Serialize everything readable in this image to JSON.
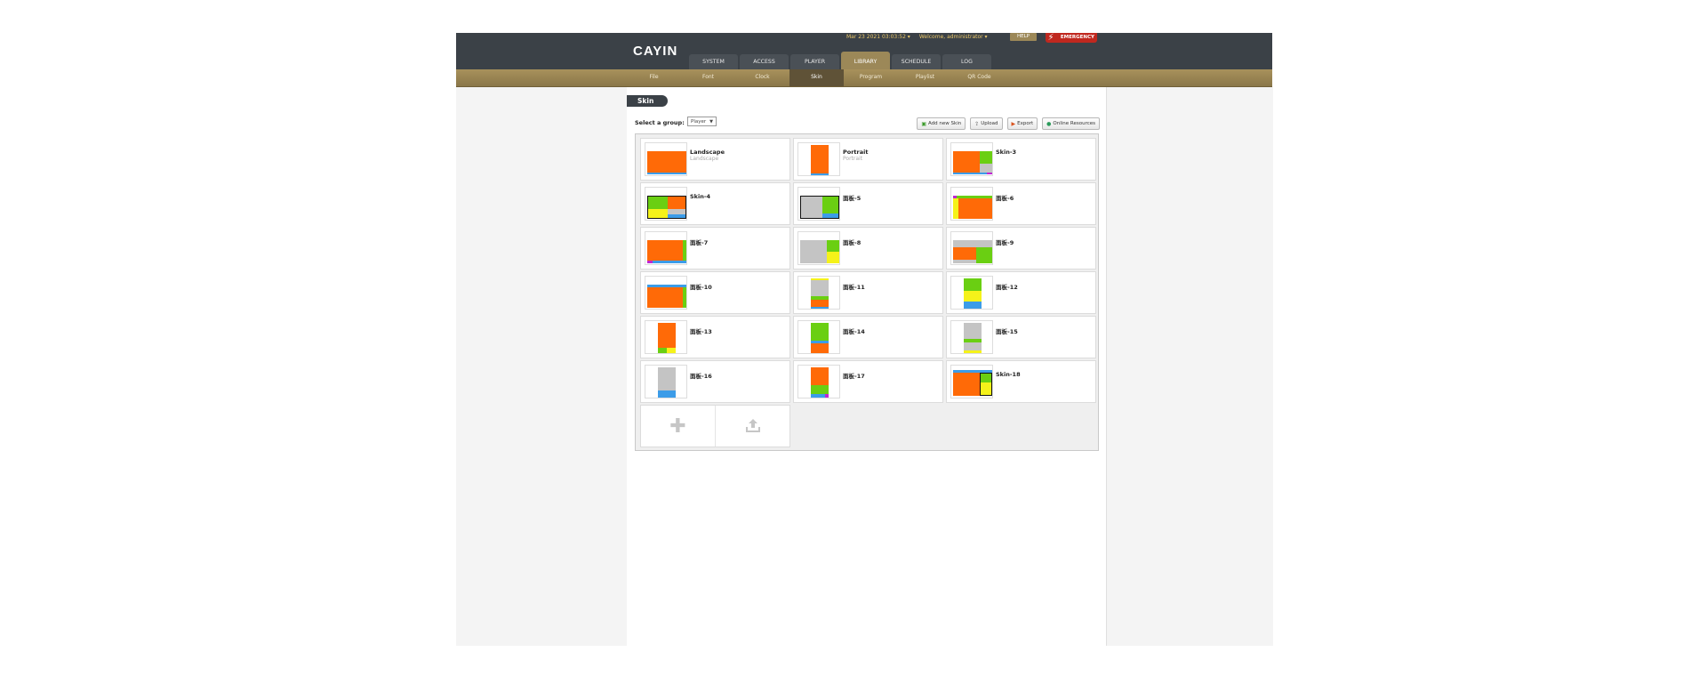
{
  "header": {
    "logo": "CAYIN",
    "datetime": "Mar 23 2021 03:03:52 ▾",
    "welcome": "Welcome, administrator ▾",
    "help": "HELP",
    "emergency": "EMERGENCY"
  },
  "nav": {
    "tabs": [
      {
        "label": "SYSTEM"
      },
      {
        "label": "ACCESS"
      },
      {
        "label": "PLAYER"
      },
      {
        "label": "LIBRARY",
        "active": true
      },
      {
        "label": "SCHEDULE"
      },
      {
        "label": "LOG"
      }
    ]
  },
  "subnav": {
    "tabs": [
      {
        "label": "File"
      },
      {
        "label": "Font"
      },
      {
        "label": "Clock"
      },
      {
        "label": "Skin",
        "active": true
      },
      {
        "label": "Program"
      },
      {
        "label": "Playlist"
      },
      {
        "label": "QR Code"
      }
    ]
  },
  "page": {
    "title": "Skin",
    "group_label": "Select a group:",
    "group_value": "Player"
  },
  "actions": {
    "add_new_skin": "Add new Skin",
    "upload": "Upload",
    "export": "Export",
    "online_resources": "Online Resources"
  },
  "skins": [
    {
      "name": "Landscape",
      "sub": "Landscape"
    },
    {
      "name": "Portrait",
      "sub": "Portrait"
    },
    {
      "name": "Skin-3",
      "sub": ""
    },
    {
      "name": "Skin-4",
      "sub": ""
    },
    {
      "name": "面板-5",
      "sub": ""
    },
    {
      "name": "面板-6",
      "sub": ""
    },
    {
      "name": "面板-7",
      "sub": ""
    },
    {
      "name": "面板-8",
      "sub": ""
    },
    {
      "name": "面板-9",
      "sub": ""
    },
    {
      "name": "面板-10",
      "sub": ""
    },
    {
      "name": "面板-11",
      "sub": ""
    },
    {
      "name": "面板-12",
      "sub": ""
    },
    {
      "name": "面板-13",
      "sub": ""
    },
    {
      "name": "面板-14",
      "sub": ""
    },
    {
      "name": "面板-15",
      "sub": ""
    },
    {
      "name": "面板-16",
      "sub": ""
    },
    {
      "name": "面板-17",
      "sub": ""
    },
    {
      "name": "Skin-18",
      "sub": ""
    }
  ],
  "icons": {
    "add_tile": "plus-icon",
    "upload_tile": "upload-icon"
  },
  "colors": {
    "topbar": "#3b4147",
    "accent": "#9c8858",
    "zone_orange": "#ff6a07",
    "zone_green": "#6acf12",
    "zone_yellow": "#f5f21a",
    "zone_blue": "#3c9ce8",
    "zone_gray": "#c4c4c4"
  }
}
